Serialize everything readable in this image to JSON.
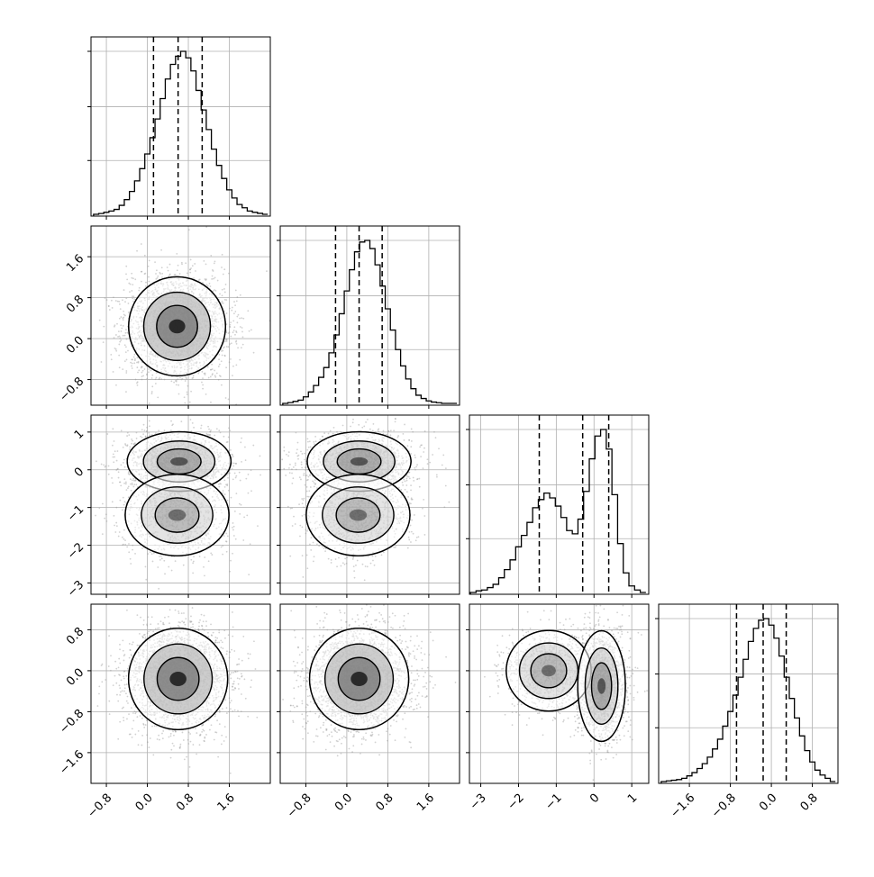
{
  "chart_data": {
    "type": "corner",
    "n_params": 4,
    "grid": true,
    "colors": {
      "line": "#000000",
      "grid": "#b0b0b0",
      "scatter": "#9a9a9a",
      "frame": "#000000"
    },
    "axes": [
      {
        "range": [
          -1.1,
          2.4
        ],
        "ticks": [
          -0.8,
          0.0,
          0.8,
          1.6
        ],
        "tick_labels": [
          "−0.8",
          "0.0",
          "0.8",
          "1.6"
        ]
      },
      {
        "range": [
          -1.3,
          2.2
        ],
        "ticks": [
          -0.8,
          0.0,
          0.8,
          1.6
        ],
        "tick_labels": [
          "−0.8",
          "0.0",
          "0.8",
          "1.6"
        ]
      },
      {
        "range": [
          -3.3,
          1.45
        ],
        "ticks": [
          -3,
          -2,
          -1,
          0,
          1
        ],
        "tick_labels": [
          "−3",
          "−2",
          "−1",
          "0",
          "1"
        ]
      },
      {
        "range": [
          -2.2,
          1.3
        ],
        "ticks": [
          -1.6,
          -0.8,
          0.0,
          0.8
        ],
        "tick_labels": [
          "−1.6",
          "−0.8",
          "0.0",
          "0.8"
        ]
      }
    ],
    "quantiles": [
      [
        0.12,
        0.6,
        1.07
      ],
      [
        -0.22,
        0.24,
        0.69
      ],
      [
        -1.45,
        -0.3,
        0.39
      ],
      [
        -0.68,
        -0.16,
        0.29
      ]
    ],
    "histograms": [
      {
        "x": [
          -1.0,
          -0.9,
          -0.8,
          -0.7,
          -0.6,
          -0.5,
          -0.4,
          -0.3,
          -0.2,
          -0.1,
          0.0,
          0.1,
          0.2,
          0.3,
          0.4,
          0.5,
          0.6,
          0.7,
          0.8,
          0.9,
          1.0,
          1.1,
          1.2,
          1.3,
          1.4,
          1.5,
          1.6,
          1.7,
          1.8,
          1.9,
          2.0,
          2.1,
          2.2,
          2.3
        ],
        "y": [
          0.0,
          0.005,
          0.012,
          0.02,
          0.03,
          0.055,
          0.09,
          0.14,
          0.205,
          0.28,
          0.37,
          0.47,
          0.585,
          0.71,
          0.83,
          0.92,
          0.97,
          1.0,
          0.96,
          0.88,
          0.76,
          0.64,
          0.52,
          0.4,
          0.3,
          0.22,
          0.15,
          0.1,
          0.06,
          0.04,
          0.02,
          0.012,
          0.006,
          0.0
        ]
      },
      {
        "x": [
          -1.2,
          -1.1,
          -1.0,
          -0.9,
          -0.8,
          -0.7,
          -0.6,
          -0.5,
          -0.4,
          -0.3,
          -0.2,
          -0.1,
          0.0,
          0.1,
          0.2,
          0.3,
          0.4,
          0.5,
          0.6,
          0.7,
          0.8,
          0.9,
          1.0,
          1.1,
          1.2,
          1.3,
          1.4,
          1.5,
          1.6,
          1.7,
          1.8,
          1.9,
          2.0,
          2.1
        ],
        "y": [
          0.0,
          0.005,
          0.012,
          0.02,
          0.04,
          0.07,
          0.11,
          0.16,
          0.22,
          0.31,
          0.42,
          0.55,
          0.69,
          0.82,
          0.93,
          0.99,
          1.0,
          0.95,
          0.85,
          0.72,
          0.58,
          0.45,
          0.33,
          0.23,
          0.15,
          0.09,
          0.05,
          0.03,
          0.015,
          0.008,
          0.004,
          0.0,
          0.0,
          0.0
        ]
      },
      {
        "x": [
          -3.2,
          -3.05,
          -2.9,
          -2.75,
          -2.6,
          -2.45,
          -2.3,
          -2.15,
          -2.0,
          -1.85,
          -1.7,
          -1.55,
          -1.4,
          -1.25,
          -1.1,
          -0.95,
          -0.8,
          -0.65,
          -0.5,
          -0.35,
          -0.2,
          -0.05,
          0.1,
          0.25,
          0.4,
          0.55,
          0.7,
          0.85,
          1.0,
          1.15,
          1.3
        ],
        "y": [
          0.0,
          0.01,
          0.015,
          0.03,
          0.05,
          0.09,
          0.14,
          0.2,
          0.28,
          0.35,
          0.43,
          0.52,
          0.57,
          0.61,
          0.58,
          0.53,
          0.46,
          0.38,
          0.36,
          0.45,
          0.62,
          0.82,
          0.96,
          1.0,
          0.88,
          0.6,
          0.3,
          0.12,
          0.04,
          0.015,
          0.0
        ]
      },
      {
        "x": [
          -2.1,
          -2.0,
          -1.9,
          -1.8,
          -1.7,
          -1.6,
          -1.5,
          -1.4,
          -1.3,
          -1.2,
          -1.1,
          -1.0,
          -0.9,
          -0.8,
          -0.7,
          -0.6,
          -0.5,
          -0.4,
          -0.3,
          -0.2,
          -0.1,
          0.0,
          0.1,
          0.2,
          0.3,
          0.4,
          0.5,
          0.6,
          0.7,
          0.8,
          0.9,
          1.0,
          1.1,
          1.2
        ],
        "y": [
          0.0,
          0.004,
          0.008,
          0.012,
          0.02,
          0.035,
          0.055,
          0.08,
          0.11,
          0.15,
          0.2,
          0.26,
          0.34,
          0.43,
          0.53,
          0.64,
          0.75,
          0.86,
          0.94,
          0.99,
          1.0,
          0.96,
          0.88,
          0.77,
          0.64,
          0.51,
          0.39,
          0.28,
          0.19,
          0.12,
          0.07,
          0.04,
          0.02,
          0.0
        ]
      }
    ],
    "pairs": [
      {
        "x": 0,
        "y": 1,
        "modes": [
          {
            "mx": 0.58,
            "my": 0.24,
            "sx": 0.42,
            "sy": 0.43,
            "w": 1.0
          }
        ]
      },
      {
        "x": 0,
        "y": 2,
        "modes": [
          {
            "mx": 0.62,
            "my": 0.22,
            "sx": 0.45,
            "sy": 0.35,
            "w": 0.58
          },
          {
            "mx": 0.58,
            "my": -1.2,
            "sx": 0.45,
            "sy": 0.48,
            "w": 0.42
          }
        ]
      },
      {
        "x": 1,
        "y": 2,
        "modes": [
          {
            "mx": 0.24,
            "my": 0.22,
            "sx": 0.45,
            "sy": 0.35,
            "w": 0.58
          },
          {
            "mx": 0.22,
            "my": -1.2,
            "sx": 0.45,
            "sy": 0.48,
            "w": 0.42
          }
        ]
      },
      {
        "x": 0,
        "y": 3,
        "modes": [
          {
            "mx": 0.6,
            "my": -0.16,
            "sx": 0.43,
            "sy": 0.44,
            "w": 1.0
          }
        ]
      },
      {
        "x": 1,
        "y": 3,
        "modes": [
          {
            "mx": 0.24,
            "my": -0.16,
            "sx": 0.43,
            "sy": 0.44,
            "w": 1.0
          }
        ]
      },
      {
        "x": 2,
        "y": 3,
        "modes": [
          {
            "mx": -1.2,
            "my": 0.0,
            "sx": 0.5,
            "sy": 0.35,
            "w": 0.42
          },
          {
            "mx": 0.2,
            "my": -0.3,
            "sx": 0.28,
            "sy": 0.48,
            "w": 0.58
          }
        ]
      }
    ]
  }
}
